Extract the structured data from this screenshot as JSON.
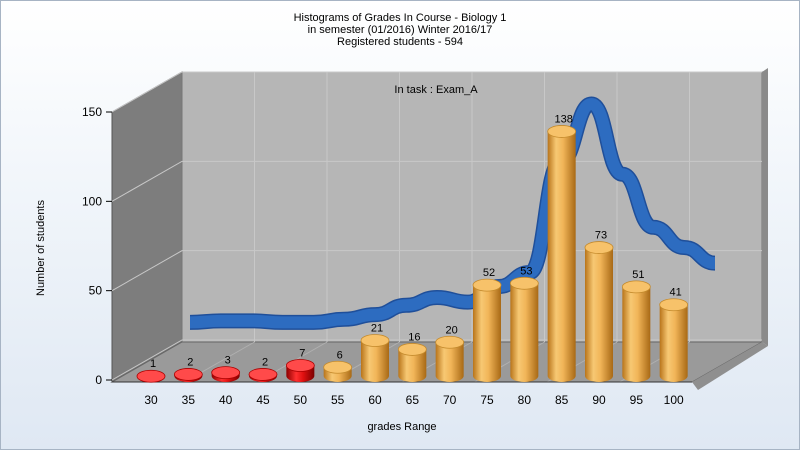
{
  "header": {
    "line1": "Histograms of Grades  In Course - Biology 1",
    "line2": "in semester  (01/2016) Winter 2016/17",
    "line3": "Registered students - 594"
  },
  "chart_data": {
    "type": "bar",
    "annotation": "In task : Exam_A",
    "categories": [
      "30",
      "35",
      "40",
      "45",
      "50",
      "55",
      "60",
      "65",
      "70",
      "75",
      "80",
      "85",
      "90",
      "95",
      "100"
    ],
    "values": [
      1,
      2,
      3,
      2,
      7,
      6,
      21,
      16,
      20,
      52,
      53,
      138,
      73,
      51,
      41
    ],
    "xlabel": "grades Range",
    "ylabel": "Number of students",
    "ylim": [
      0,
      150
    ],
    "yticks": [
      0,
      50,
      100,
      150
    ],
    "grid": true,
    "bar_colors": {
      "low": "#d81515",
      "normal": "#e0a545"
    },
    "low_threshold_category": "50",
    "curve": {
      "color": "#2d6cc0",
      "values": [
        10,
        11,
        11,
        10,
        10,
        12,
        15,
        21,
        26,
        23,
        33,
        42,
        113,
        150,
        105,
        71,
        58,
        48
      ]
    }
  }
}
